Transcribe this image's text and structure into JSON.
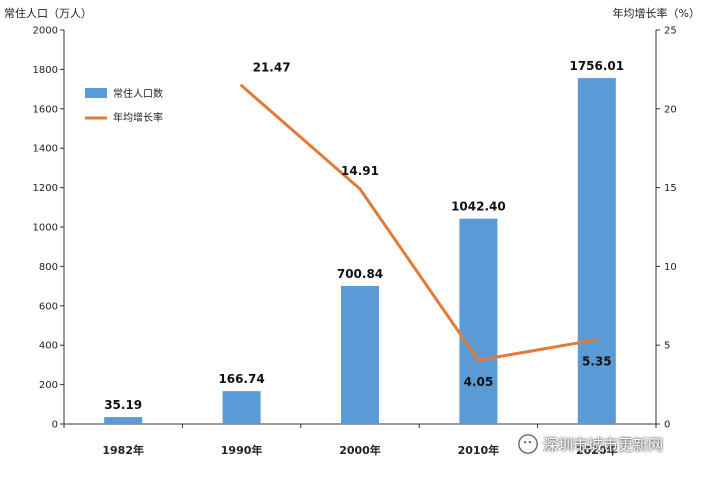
{
  "chart_data": {
    "type": "bar",
    "categories": [
      "1982年",
      "1990年",
      "2000年",
      "2010年",
      "2020年"
    ],
    "series": [
      {
        "name": "常住人口数",
        "type": "bar",
        "axis": "left",
        "values": [
          35.19,
          166.74,
          700.84,
          1042.4,
          1756.01
        ],
        "labels": [
          "35.19",
          "166.74",
          "700.84",
          "1042.40",
          "1756.01"
        ],
        "color": "#5b9bd5"
      },
      {
        "name": "年均增长率",
        "type": "line",
        "axis": "right",
        "values": [
          null,
          21.47,
          14.91,
          4.05,
          5.35
        ],
        "labels": [
          "",
          "21.47",
          "14.91",
          "4.05",
          "5.35"
        ],
        "color": "#e07b39"
      }
    ],
    "ylabel_left": "常住人口（万人）",
    "ylabel_right": "年均增长率（%）",
    "ylim_left": [
      0,
      2000
    ],
    "yticks_left": [
      0,
      200,
      400,
      600,
      800,
      1000,
      1200,
      1400,
      1600,
      1800,
      2000
    ],
    "ylim_right": [
      0,
      25
    ],
    "yticks_right": [
      0,
      5,
      10,
      15,
      20,
      25
    ],
    "grid": false,
    "legend_position": "top-left"
  },
  "watermark": {
    "text": "深圳市城市更新网",
    "icon": "wechat-icon"
  }
}
